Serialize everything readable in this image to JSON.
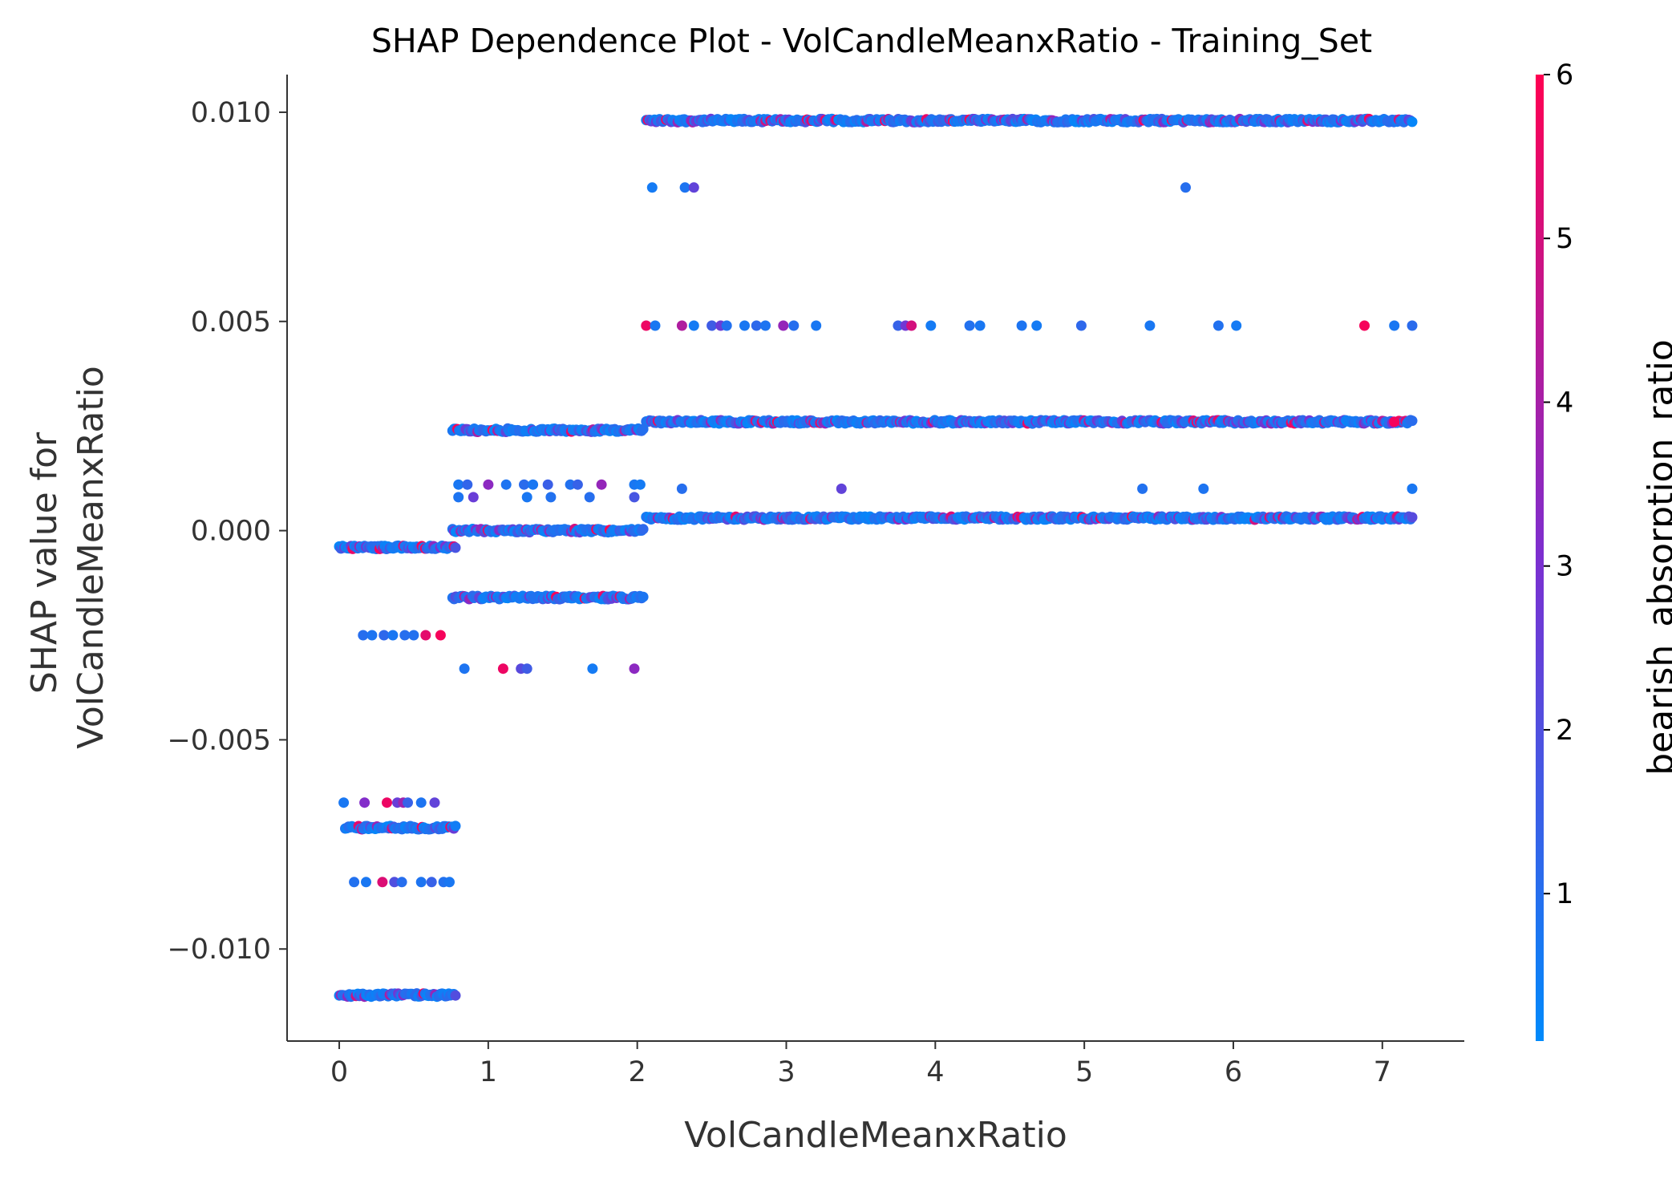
{
  "chart_data": {
    "type": "scatter",
    "title": "SHAP Dependence Plot - VolCandleMeanxRatio - Training_Set",
    "xlabel": "VolCandleMeanxRatio",
    "ylabel_lines": [
      "SHAP value for",
      "VolCandleMeanxRatio"
    ],
    "xlim": [
      -0.35,
      7.55
    ],
    "ylim": [
      -0.0122,
      0.0109
    ],
    "x_ticks": [
      0,
      1,
      2,
      3,
      4,
      5,
      6,
      7
    ],
    "x_tick_labels": [
      "0",
      "1",
      "2",
      "3",
      "4",
      "5",
      "6",
      "7"
    ],
    "y_ticks": [
      0.01,
      0.005,
      0.0,
      -0.005,
      -0.01
    ],
    "y_tick_labels": [
      "0.010",
      "0.005",
      "0.000",
      "−0.005",
      "−0.010"
    ],
    "grid": false,
    "colorbar": {
      "label": "bearish_absorption_ratio",
      "min": 0.1,
      "max": 6,
      "ticks": [
        1,
        2,
        3,
        4,
        5,
        6
      ],
      "tick_labels": [
        "1",
        "2",
        "3",
        "4",
        "5",
        "6"
      ],
      "color_low": "#008afb",
      "color_mid": "#7c2fd0",
      "color_high": "#ff0052"
    },
    "bands": [
      {
        "y": 0.0098,
        "x_range": [
          2.06,
          7.2
        ],
        "density": "dense"
      },
      {
        "y": 0.0026,
        "x_range": [
          2.06,
          7.2
        ],
        "density": "dense"
      },
      {
        "y": 0.0003,
        "x_range": [
          2.06,
          7.2
        ],
        "density": "dense"
      },
      {
        "y": 0.0024,
        "x_range": [
          0.76,
          2.04
        ],
        "density": "dense"
      },
      {
        "y": 0.0,
        "x_range": [
          0.76,
          2.04
        ],
        "density": "dense"
      },
      {
        "y": -0.0016,
        "x_range": [
          0.76,
          2.04
        ],
        "density": "dense"
      },
      {
        "y": -0.0004,
        "x_range": [
          0.0,
          0.78
        ],
        "density": "dense"
      },
      {
        "y": -0.0071,
        "x_range": [
          0.04,
          0.78
        ],
        "density": "dense"
      },
      {
        "y": -0.0111,
        "x_range": [
          0.0,
          0.78
        ],
        "density": "dense"
      }
    ],
    "points": [
      {
        "x": 2.1,
        "y": 0.0082,
        "c": 0.6
      },
      {
        "x": 2.32,
        "y": 0.0082,
        "c": 0.8
      },
      {
        "x": 2.38,
        "y": 0.0082,
        "c": 2.4
      },
      {
        "x": 5.68,
        "y": 0.0082,
        "c": 1.0
      },
      {
        "x": 2.06,
        "y": 0.0049,
        "c": 5.6
      },
      {
        "x": 2.12,
        "y": 0.0049,
        "c": 0.7
      },
      {
        "x": 2.3,
        "y": 0.0049,
        "c": 4.2
      },
      {
        "x": 2.38,
        "y": 0.0049,
        "c": 0.6
      },
      {
        "x": 2.5,
        "y": 0.0049,
        "c": 1.6
      },
      {
        "x": 2.56,
        "y": 0.0049,
        "c": 2.6
      },
      {
        "x": 2.6,
        "y": 0.0049,
        "c": 0.9
      },
      {
        "x": 2.72,
        "y": 0.0049,
        "c": 0.7
      },
      {
        "x": 2.8,
        "y": 0.0049,
        "c": 1.2
      },
      {
        "x": 2.86,
        "y": 0.0049,
        "c": 0.8
      },
      {
        "x": 2.98,
        "y": 0.0049,
        "c": 3.6
      },
      {
        "x": 3.05,
        "y": 0.0049,
        "c": 1.0
      },
      {
        "x": 3.2,
        "y": 0.0049,
        "c": 0.7
      },
      {
        "x": 3.75,
        "y": 0.0049,
        "c": 1.4
      },
      {
        "x": 3.8,
        "y": 0.0049,
        "c": 2.8
      },
      {
        "x": 3.84,
        "y": 0.0049,
        "c": 5.0
      },
      {
        "x": 3.97,
        "y": 0.0049,
        "c": 0.6
      },
      {
        "x": 4.23,
        "y": 0.0049,
        "c": 0.9
      },
      {
        "x": 4.3,
        "y": 0.0049,
        "c": 0.7
      },
      {
        "x": 4.58,
        "y": 0.0049,
        "c": 0.8
      },
      {
        "x": 4.68,
        "y": 0.0049,
        "c": 0.6
      },
      {
        "x": 4.98,
        "y": 0.0049,
        "c": 1.2
      },
      {
        "x": 5.44,
        "y": 0.0049,
        "c": 0.7
      },
      {
        "x": 5.9,
        "y": 0.0049,
        "c": 0.9
      },
      {
        "x": 6.02,
        "y": 0.0049,
        "c": 0.6
      },
      {
        "x": 6.88,
        "y": 0.0049,
        "c": 5.8
      },
      {
        "x": 7.08,
        "y": 0.0049,
        "c": 0.7
      },
      {
        "x": 7.2,
        "y": 0.0049,
        "c": 1.1
      },
      {
        "x": 2.3,
        "y": 0.001,
        "c": 1.0
      },
      {
        "x": 3.37,
        "y": 0.001,
        "c": 2.4
      },
      {
        "x": 5.39,
        "y": 0.001,
        "c": 0.9
      },
      {
        "x": 5.8,
        "y": 0.001,
        "c": 0.8
      },
      {
        "x": 7.2,
        "y": 0.001,
        "c": 0.7
      },
      {
        "x": 7.08,
        "y": 0.0026,
        "c": 5.8
      },
      {
        "x": 0.8,
        "y": 0.0011,
        "c": 0.7
      },
      {
        "x": 0.86,
        "y": 0.0011,
        "c": 1.3
      },
      {
        "x": 1.0,
        "y": 0.0011,
        "c": 3.4
      },
      {
        "x": 1.12,
        "y": 0.0011,
        "c": 0.8
      },
      {
        "x": 1.24,
        "y": 0.0011,
        "c": 1.1
      },
      {
        "x": 1.3,
        "y": 0.0011,
        "c": 0.7
      },
      {
        "x": 1.4,
        "y": 0.0011,
        "c": 1.5
      },
      {
        "x": 1.55,
        "y": 0.0011,
        "c": 0.9
      },
      {
        "x": 1.6,
        "y": 0.0011,
        "c": 1.4
      },
      {
        "x": 1.76,
        "y": 0.0011,
        "c": 3.6
      },
      {
        "x": 1.98,
        "y": 0.0011,
        "c": 0.7
      },
      {
        "x": 2.02,
        "y": 0.0011,
        "c": 0.6
      },
      {
        "x": 0.8,
        "y": 0.0008,
        "c": 0.8
      },
      {
        "x": 0.9,
        "y": 0.0008,
        "c": 2.6
      },
      {
        "x": 1.26,
        "y": 0.0008,
        "c": 0.7
      },
      {
        "x": 1.42,
        "y": 0.0008,
        "c": 0.9
      },
      {
        "x": 1.68,
        "y": 0.0008,
        "c": 1.0
      },
      {
        "x": 1.98,
        "y": 0.0008,
        "c": 1.8
      },
      {
        "x": 0.84,
        "y": -0.0033,
        "c": 0.8
      },
      {
        "x": 1.1,
        "y": -0.0033,
        "c": 5.6
      },
      {
        "x": 1.22,
        "y": -0.0033,
        "c": 2.2
      },
      {
        "x": 1.26,
        "y": -0.0033,
        "c": 1.6
      },
      {
        "x": 1.7,
        "y": -0.0033,
        "c": 0.6
      },
      {
        "x": 1.98,
        "y": -0.0033,
        "c": 3.4
      },
      {
        "x": 0.16,
        "y": -0.0025,
        "c": 1.0
      },
      {
        "x": 0.22,
        "y": -0.0025,
        "c": 0.8
      },
      {
        "x": 0.3,
        "y": -0.0025,
        "c": 1.2
      },
      {
        "x": 0.36,
        "y": -0.0025,
        "c": 0.7
      },
      {
        "x": 0.44,
        "y": -0.0025,
        "c": 1.0
      },
      {
        "x": 0.5,
        "y": -0.0025,
        "c": 0.9
      },
      {
        "x": 0.58,
        "y": -0.0025,
        "c": 5.4
      },
      {
        "x": 0.68,
        "y": -0.0025,
        "c": 5.8
      },
      {
        "x": 0.03,
        "y": -0.0065,
        "c": 0.7
      },
      {
        "x": 0.17,
        "y": -0.0065,
        "c": 3.2
      },
      {
        "x": 0.32,
        "y": -0.0065,
        "c": 5.6
      },
      {
        "x": 0.39,
        "y": -0.0065,
        "c": 2.6
      },
      {
        "x": 0.43,
        "y": -0.0065,
        "c": 3.8
      },
      {
        "x": 0.46,
        "y": -0.0065,
        "c": 1.4
      },
      {
        "x": 0.55,
        "y": -0.0065,
        "c": 0.8
      },
      {
        "x": 0.64,
        "y": -0.0065,
        "c": 2.4
      },
      {
        "x": 0.1,
        "y": -0.0084,
        "c": 0.9
      },
      {
        "x": 0.18,
        "y": -0.0084,
        "c": 0.7
      },
      {
        "x": 0.29,
        "y": -0.0084,
        "c": 5.2
      },
      {
        "x": 0.37,
        "y": -0.0084,
        "c": 2.0
      },
      {
        "x": 0.42,
        "y": -0.0084,
        "c": 1.0
      },
      {
        "x": 0.55,
        "y": -0.0084,
        "c": 0.8
      },
      {
        "x": 0.62,
        "y": -0.0084,
        "c": 1.4
      },
      {
        "x": 0.7,
        "y": -0.0084,
        "c": 0.9
      },
      {
        "x": 0.74,
        "y": -0.0084,
        "c": 0.7
      }
    ]
  }
}
